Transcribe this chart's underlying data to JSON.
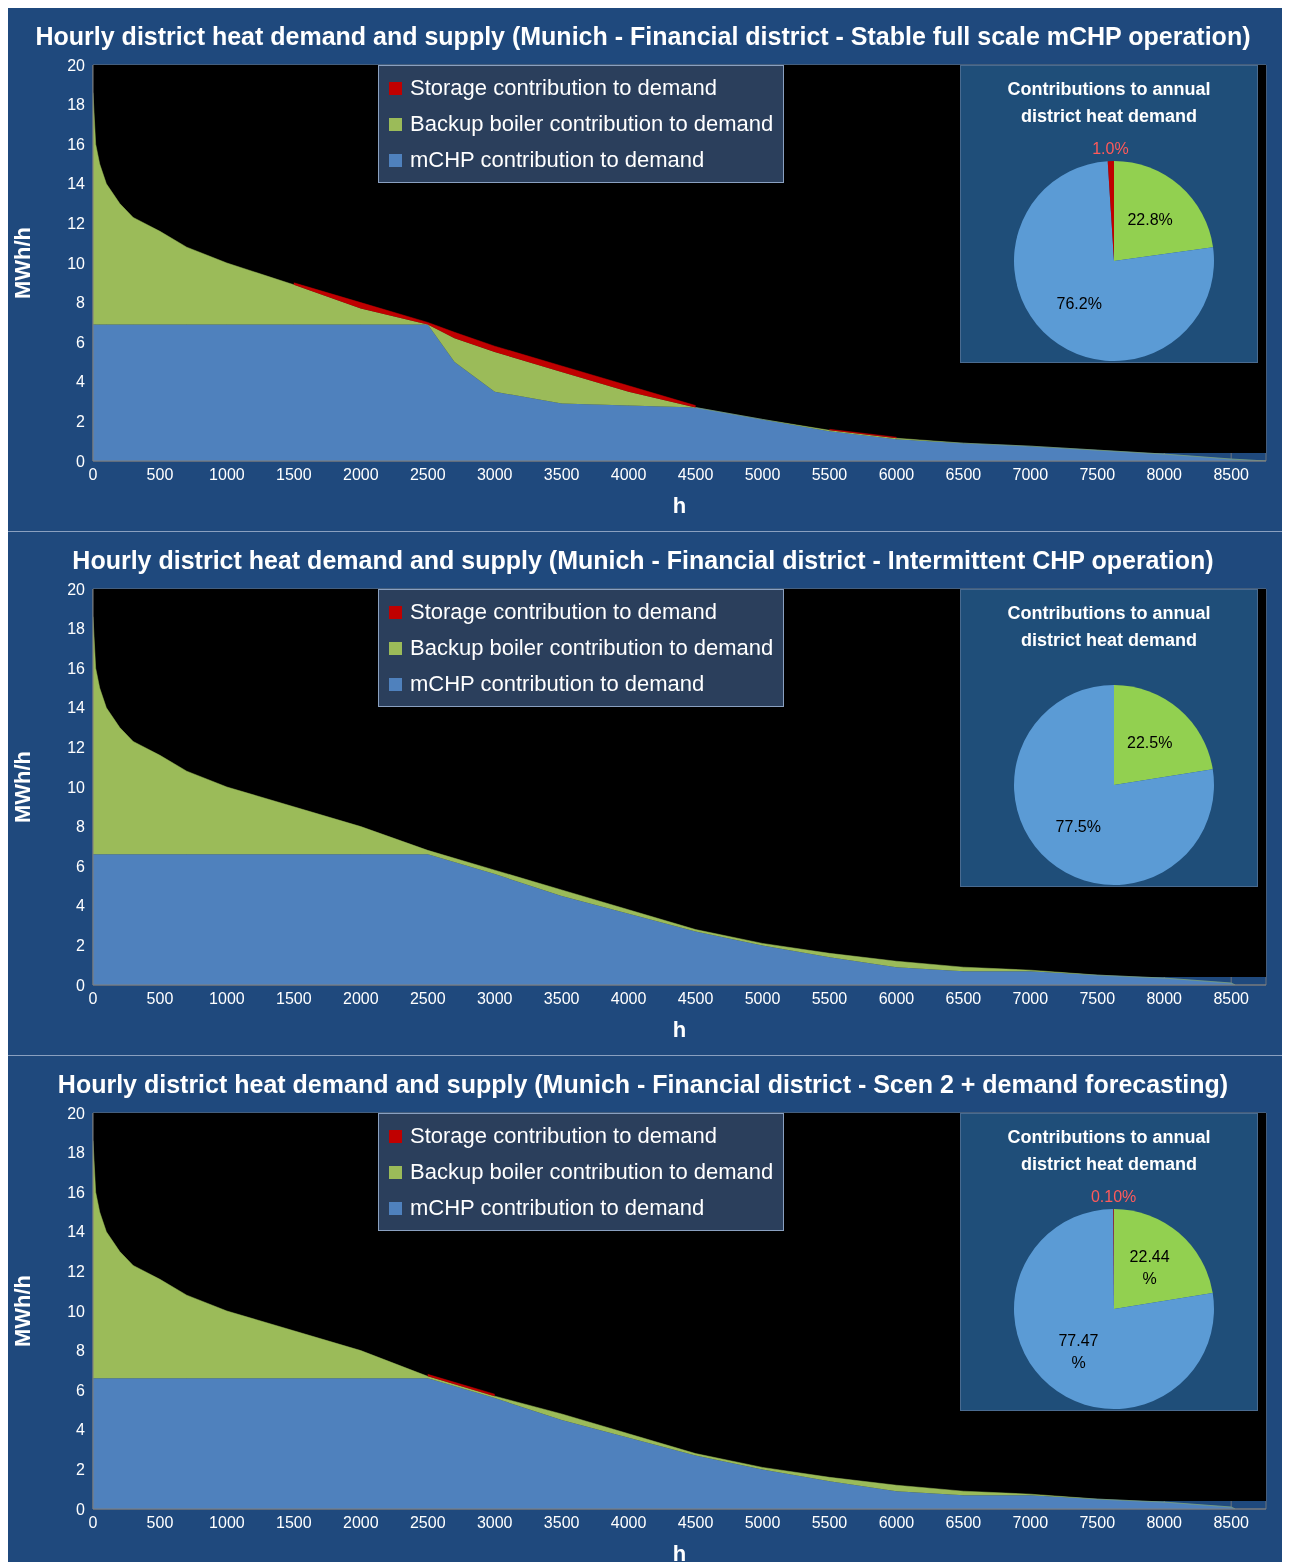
{
  "chart_data": [
    {
      "type": "area",
      "title": "Hourly district heat demand and supply (Munich - Financial district - Stable full scale mCHP operation)",
      "xlabel": "h",
      "ylabel": "MWh/h",
      "stacked": true,
      "legend": "top",
      "grid": true,
      "x": [
        0,
        20,
        50,
        100,
        200,
        300,
        500,
        700,
        1000,
        1500,
        2000,
        2500,
        2700,
        3000,
        3500,
        4000,
        4500,
        5000,
        5500,
        6000,
        6500,
        7000,
        7500,
        8000,
        8500,
        8760
      ],
      "xlim": [
        0,
        8760
      ],
      "xticks": [
        0,
        500,
        1000,
        1500,
        2000,
        2500,
        3000,
        3500,
        4000,
        4500,
        5000,
        5500,
        6000,
        6500,
        7000,
        7500,
        8000,
        8500
      ],
      "ylim": [
        0,
        20
      ],
      "yticks": [
        0,
        2,
        4,
        6,
        8,
        10,
        12,
        14,
        16,
        18,
        20
      ],
      "series": [
        {
          "name": "mCHP contribution to demand",
          "color": "#4f81bd",
          "values": [
            6.9,
            6.9,
            6.9,
            6.9,
            6.9,
            6.9,
            6.9,
            6.9,
            6.9,
            6.9,
            6.9,
            6.9,
            5.0,
            3.5,
            2.9,
            2.8,
            2.7,
            2.1,
            1.5,
            1.1,
            0.9,
            0.75,
            0.55,
            0.35,
            0.1,
            0
          ]
        },
        {
          "name": "Backup boiler contribution to demand",
          "color": "#9bbb59",
          "values": [
            11.7,
            9.1,
            8.1,
            7.1,
            6.1,
            5.4,
            4.7,
            3.9,
            3.1,
            2.0,
            0.8,
            0,
            1.2,
            2.0,
            1.6,
            0.7,
            0,
            0,
            0.05,
            0.05,
            0,
            0,
            0,
            0,
            0,
            0
          ]
        },
        {
          "name": "Storage contribution to demand",
          "color": "#c00000",
          "values": [
            null,
            null,
            null,
            null,
            null,
            null,
            null,
            null,
            null,
            0.1,
            0.3,
            0.1,
            0.3,
            0.3,
            0.3,
            0.3,
            0.1,
            null,
            0.05,
            0.05,
            null,
            null,
            null,
            null,
            null,
            null
          ]
        }
      ]
    },
    {
      "type": "pie",
      "title": "Contributions to annual district heat demand",
      "categories": [
        null,
        null,
        null
      ],
      "values": [
        22.8,
        76.2,
        1.0
      ],
      "colors": [
        "#92d050",
        "#5b9bd5",
        "#c00000"
      ],
      "value_labels": [
        "22.8%",
        "76.2%",
        "1.0%"
      ]
    },
    {
      "type": "area",
      "title": "Hourly district heat demand and supply (Munich - Financial district -  Intermittent CHP operation)",
      "xlabel": "h",
      "ylabel": "MWh/h",
      "stacked": true,
      "legend": "top",
      "grid": true,
      "x": [
        0,
        20,
        50,
        100,
        200,
        300,
        500,
        700,
        1000,
        1500,
        2000,
        2500,
        3000,
        3500,
        4000,
        4500,
        5000,
        5500,
        6000,
        6500,
        7000,
        7500,
        8000,
        8500,
        8530
      ],
      "xlim": [
        0,
        8760
      ],
      "xticks": [
        0,
        500,
        1000,
        1500,
        2000,
        2500,
        3000,
        3500,
        4000,
        4500,
        5000,
        5500,
        6000,
        6500,
        7000,
        7500,
        8000,
        8500
      ],
      "ylim": [
        0,
        20
      ],
      "yticks": [
        0,
        2,
        4,
        6,
        8,
        10,
        12,
        14,
        16,
        18,
        20
      ],
      "series": [
        {
          "name": "mCHP contribution to demand",
          "color": "#4f81bd",
          "values": [
            6.6,
            6.6,
            6.6,
            6.6,
            6.6,
            6.6,
            6.6,
            6.6,
            6.6,
            6.6,
            6.6,
            6.6,
            5.6,
            4.5,
            3.6,
            2.7,
            2.0,
            1.4,
            0.9,
            0.7,
            0.7,
            0.5,
            0.35,
            0.1,
            0
          ]
        },
        {
          "name": "Backup boiler contribution to demand",
          "color": "#9bbb59",
          "values": [
            12.0,
            9.4,
            8.4,
            7.4,
            6.4,
            5.7,
            5.0,
            4.2,
            3.4,
            2.4,
            1.4,
            0.2,
            0.2,
            0.3,
            0.2,
            0.1,
            0.1,
            0.2,
            0.3,
            0.2,
            0.05,
            0,
            0,
            0,
            0
          ]
        },
        {
          "name": "Storage contribution to demand",
          "color": "#c00000",
          "values": [
            null,
            null,
            null,
            null,
            null,
            null,
            null,
            null,
            null,
            null,
            null,
            null,
            null,
            null,
            null,
            null,
            null,
            null,
            null,
            null,
            null,
            null,
            null,
            null,
            null
          ]
        }
      ]
    },
    {
      "type": "pie",
      "title": "Contributions to annual district heat demand",
      "categories": [
        null,
        null
      ],
      "values": [
        22.5,
        77.5
      ],
      "colors": [
        "#92d050",
        "#5b9bd5"
      ],
      "value_labels": [
        "22.5%",
        "77.5%"
      ]
    },
    {
      "type": "area",
      "title": "Hourly district heat demand and supply (Munich - Financial district -  Scen 2 + demand forecasting)",
      "xlabel": "h",
      "ylabel": "MWh/h",
      "stacked": true,
      "legend": "top",
      "grid": true,
      "x": [
        0,
        20,
        50,
        100,
        200,
        300,
        500,
        700,
        1000,
        1500,
        2000,
        2500,
        3000,
        3500,
        4000,
        4500,
        5000,
        5500,
        6000,
        6500,
        7000,
        7500,
        8000,
        8500,
        8530
      ],
      "xlim": [
        0,
        8760
      ],
      "xticks": [
        0,
        500,
        1000,
        1500,
        2000,
        2500,
        3000,
        3500,
        4000,
        4500,
        5000,
        5500,
        6000,
        6500,
        7000,
        7500,
        8000,
        8500
      ],
      "ylim": [
        0,
        20
      ],
      "yticks": [
        0,
        2,
        4,
        6,
        8,
        10,
        12,
        14,
        16,
        18,
        20
      ],
      "series": [
        {
          "name": "mCHP contribution to demand",
          "color": "#4f81bd",
          "values": [
            6.6,
            6.6,
            6.6,
            6.6,
            6.6,
            6.6,
            6.6,
            6.6,
            6.6,
            6.6,
            6.6,
            6.6,
            5.6,
            4.5,
            3.6,
            2.7,
            2.0,
            1.4,
            0.9,
            0.7,
            0.7,
            0.5,
            0.35,
            0.1,
            0
          ]
        },
        {
          "name": "Backup boiler contribution to demand",
          "color": "#9bbb59",
          "values": [
            12.0,
            9.4,
            8.4,
            7.4,
            6.4,
            5.7,
            5.0,
            4.2,
            3.4,
            2.4,
            1.4,
            0.1,
            0.1,
            0.3,
            0.2,
            0.1,
            0.1,
            0.2,
            0.3,
            0.2,
            0.05,
            0,
            0,
            0,
            0
          ]
        },
        {
          "name": "Storage contribution to demand",
          "color": "#c00000",
          "values": [
            null,
            null,
            null,
            null,
            null,
            null,
            null,
            null,
            null,
            null,
            null,
            0.1,
            0.1,
            null,
            null,
            null,
            null,
            null,
            null,
            null,
            null,
            null,
            null,
            null,
            null
          ]
        }
      ]
    },
    {
      "type": "pie",
      "title": "Contributions to annual district heat demand",
      "categories": [
        null,
        null,
        null
      ],
      "values": [
        22.44,
        77.47,
        0.1
      ],
      "colors": [
        "#92d050",
        "#5b9bd5",
        "#c00000"
      ],
      "value_labels": [
        "22.44 %",
        "77.47 %",
        "0.10%"
      ]
    }
  ]
}
